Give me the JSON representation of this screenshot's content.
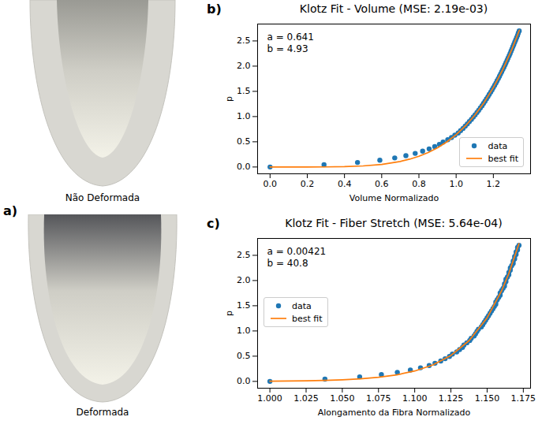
{
  "chart_data": [
    {
      "type": "line",
      "panel_label": "b)",
      "title": "Klotz Fit - Volume (MSE: 2.19e-03)",
      "x_label": "Volume Normalizado",
      "y_label": "p",
      "annotations": [
        "a = 0.641",
        "b = 4.93"
      ],
      "xlim": [
        -0.067,
        1.4
      ],
      "ylim": [
        -0.135,
        2.835
      ],
      "xticks": [
        {
          "value": 0,
          "label": "0.0"
        },
        0.2,
        0.4,
        0.6,
        0.8,
        {
          "value": 1,
          "label": "1.0"
        },
        1.2
      ],
      "yticks": [
        {
          "value": 0,
          "label": "0.0"
        },
        0.5,
        {
          "value": 1,
          "label": "1.0"
        },
        1.5,
        {
          "value": 2,
          "label": "2.0"
        },
        2.5
      ],
      "grid": false,
      "legend": "lower right",
      "series": [
        {
          "name": "data",
          "type": "scatter",
          "marker": "circle",
          "color": "#1f77b4",
          "x": [
            0,
            0.29,
            0.47,
            0.59,
            0.67,
            0.73,
            0.78,
            0.82,
            0.855,
            0.885,
            0.91,
            0.93,
            0.955,
            0.975,
            0.993,
            1.011,
            1.024,
            1.037,
            1.049,
            1.06,
            1.071,
            1.082,
            1.092,
            1.102,
            1.112,
            1.121,
            1.13,
            1.139,
            1.147,
            1.155,
            1.163,
            1.171,
            1.178,
            1.186,
            1.193,
            1.2,
            1.207,
            1.214,
            1.22,
            1.227,
            1.233,
            1.239,
            1.245,
            1.251,
            1.257,
            1.263,
            1.268,
            1.274,
            1.279,
            1.285,
            1.29,
            1.295,
            1.3,
            1.305,
            1.31,
            1.315,
            1.32,
            1.325,
            1.33,
            1.334,
            1.339
          ],
          "values": [
            0,
            0.045,
            0.09,
            0.135,
            0.18,
            0.225,
            0.27,
            0.315,
            0.36,
            0.405,
            0.45,
            0.495,
            0.54,
            0.585,
            0.63,
            0.675,
            0.72,
            0.765,
            0.81,
            0.855,
            0.9,
            0.945,
            0.99,
            1.035,
            1.08,
            1.125,
            1.17,
            1.215,
            1.26,
            1.305,
            1.35,
            1.395,
            1.44,
            1.485,
            1.53,
            1.575,
            1.62,
            1.665,
            1.71,
            1.755,
            1.8,
            1.845,
            1.89,
            1.935,
            1.98,
            2.025,
            2.07,
            2.115,
            2.16,
            2.205,
            2.25,
            2.295,
            2.34,
            2.385,
            2.43,
            2.475,
            2.52,
            2.565,
            2.61,
            2.655,
            2.7
          ]
        },
        {
          "name": "best fit",
          "type": "line",
          "line_style": "solid",
          "color": "#ff7f0e",
          "x": [
            0,
            0.1,
            0.2,
            0.3,
            0.4,
            0.5,
            0.6,
            0.7,
            0.75,
            0.8,
            0.85,
            0.9,
            0.95,
            1.0,
            1.05,
            1.1,
            1.15,
            1.2,
            1.25,
            1.3,
            1.34
          ],
          "values": [
            0,
            0,
            0.0002,
            0.0017,
            0.007,
            0.021,
            0.052,
            0.11,
            0.155,
            0.213,
            0.288,
            0.381,
            0.498,
            0.641,
            0.815,
            1.025,
            1.277,
            1.575,
            1.926,
            2.337,
            2.713
          ]
        }
      ]
    },
    {
      "type": "line",
      "panel_label": "c)",
      "title": "Klotz Fit - Fiber Stretch (MSE: 5.64e-04)",
      "x_label": "Alongamento da Fibra Normalizado",
      "y_label": "p",
      "annotations": [
        "a = 0.00421",
        "b = 40.8"
      ],
      "xlim": [
        0.9915,
        1.18
      ],
      "ylim": [
        -0.135,
        2.835
      ],
      "xticks": [
        {
          "value": 1,
          "label": "1.000"
        },
        {
          "value": 1.025,
          "label": "1.025"
        },
        {
          "value": 1.05,
          "label": "1.050"
        },
        {
          "value": 1.075,
          "label": "1.075"
        },
        {
          "value": 1.1,
          "label": "1.100"
        },
        {
          "value": 1.125,
          "label": "1.125"
        },
        {
          "value": 1.15,
          "label": "1.150"
        },
        {
          "value": 1.175,
          "label": "1.175"
        }
      ],
      "yticks": [
        {
          "value": 0,
          "label": "0.0"
        },
        0.5,
        {
          "value": 1,
          "label": "1.0"
        },
        1.5,
        {
          "value": 2,
          "label": "2.0"
        },
        2.5
      ],
      "grid": false,
      "legend": "center left",
      "series": [
        {
          "name": "data",
          "type": "scatter",
          "marker": "circle",
          "color": "#1f77b4",
          "x": [
            1.0,
            1.038,
            1.062,
            1.077,
            1.088,
            1.097,
            1.104,
            1.11,
            1.114,
            1.118,
            1.121,
            1.124,
            1.126,
            1.129,
            1.131,
            1.133,
            1.134,
            1.136,
            1.138,
            1.139,
            1.141,
            1.142,
            1.143,
            1.144,
            1.146,
            1.147,
            1.148,
            1.149,
            1.15,
            1.151,
            1.152,
            1.153,
            1.154,
            1.155,
            1.156,
            1.156,
            1.157,
            1.158,
            1.159,
            1.159,
            1.16,
            1.161,
            1.162,
            1.162,
            1.163,
            1.163,
            1.164,
            1.165,
            1.165,
            1.166,
            1.166,
            1.167,
            1.168,
            1.168,
            1.169,
            1.169,
            1.17,
            1.17,
            1.171,
            1.171,
            1.172
          ],
          "values": [
            0,
            0.045,
            0.09,
            0.135,
            0.18,
            0.225,
            0.27,
            0.315,
            0.36,
            0.405,
            0.45,
            0.495,
            0.54,
            0.585,
            0.63,
            0.675,
            0.72,
            0.765,
            0.81,
            0.855,
            0.9,
            0.945,
            0.99,
            1.035,
            1.08,
            1.125,
            1.17,
            1.215,
            1.26,
            1.305,
            1.35,
            1.395,
            1.44,
            1.485,
            1.53,
            1.575,
            1.62,
            1.665,
            1.71,
            1.755,
            1.8,
            1.845,
            1.89,
            1.935,
            1.98,
            2.025,
            2.07,
            2.115,
            2.16,
            2.205,
            2.25,
            2.295,
            2.34,
            2.385,
            2.43,
            2.475,
            2.52,
            2.565,
            2.61,
            2.655,
            2.7
          ]
        },
        {
          "name": "best fit",
          "type": "line",
          "line_style": "solid",
          "color": "#ff7f0e",
          "x": [
            1.0,
            1.0125,
            1.025,
            1.0375,
            1.05,
            1.0625,
            1.075,
            1.0875,
            1.1,
            1.1125,
            1.125,
            1.1375,
            1.15,
            1.16,
            1.165,
            1.172
          ],
          "values": [
            0.0042,
            0.007,
            0.0115,
            0.0189,
            0.0308,
            0.05,
            0.0805,
            0.129,
            0.2057,
            0.326,
            0.5144,
            0.807,
            1.261,
            1.796,
            2.14,
            2.732
          ]
        }
      ]
    }
  ],
  "panel_a": {
    "panel_label": "a)",
    "images": [
      {
        "label": "Não Deformada"
      },
      {
        "label": "Deformada"
      }
    ]
  }
}
